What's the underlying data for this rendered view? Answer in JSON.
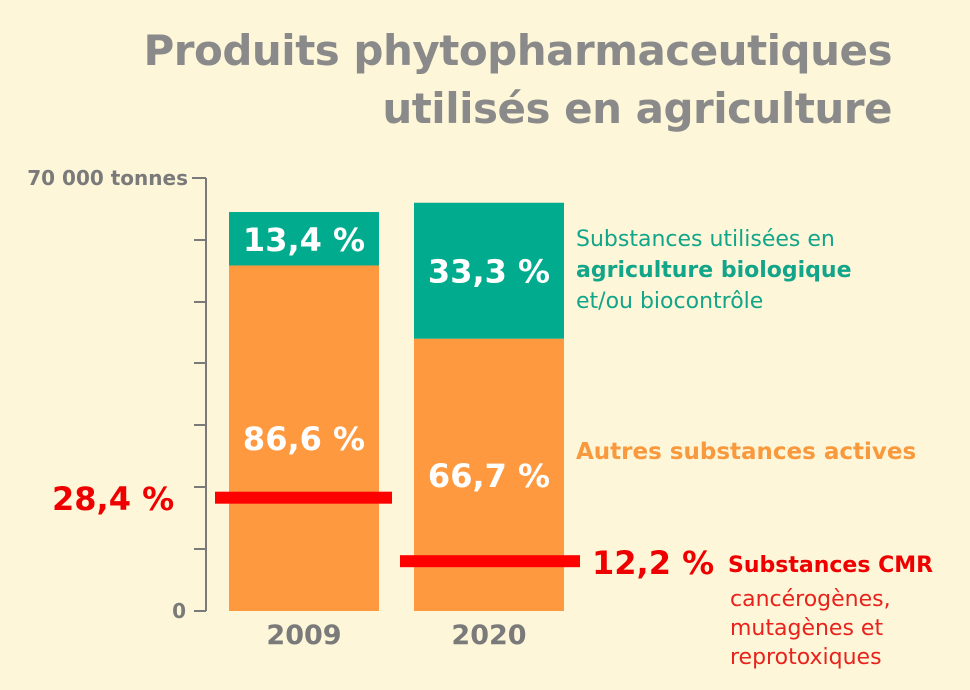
{
  "title_line1": "Produits phytopharmaceutiques",
  "title_line2": "utilisés en agriculture",
  "colors": {
    "background": "#fdf6d8",
    "bio": "#00ab8e",
    "other": "#ff9940",
    "cmr": "#ff0000",
    "axis": "#7a7a7a"
  },
  "chart_data": {
    "type": "bar",
    "stacked": true,
    "categories": [
      "2009",
      "2020"
    ],
    "y_axis_top_label": "70 000 tonnes",
    "y_axis_bottom_label": "0",
    "ylim": [
      0,
      70000
    ],
    "totals": [
      64500,
      66000
    ],
    "series": [
      {
        "key": "other",
        "values_pct": [
          86.6,
          66.7
        ],
        "labels": [
          "86,6 %",
          "66,7 %"
        ]
      },
      {
        "key": "bio",
        "values_pct": [
          13.4,
          33.3
        ],
        "labels": [
          "13,4 %",
          "33,3 %"
        ]
      }
    ],
    "cmr_share_pct": [
      28.4,
      12.2
    ],
    "cmr_labels": [
      "28,4 %",
      "12,2 %"
    ]
  },
  "legend": {
    "bio_line1": "Substances utilisées en",
    "bio_line2": "agriculture biologique",
    "bio_line3": "et/ou biocontrôle",
    "other": "Autres substances actives",
    "cmr_title": "Substances CMR",
    "cmr_line1": "cancérogènes,",
    "cmr_line2": "mutagènes et",
    "cmr_line3": "reprotoxiques"
  }
}
